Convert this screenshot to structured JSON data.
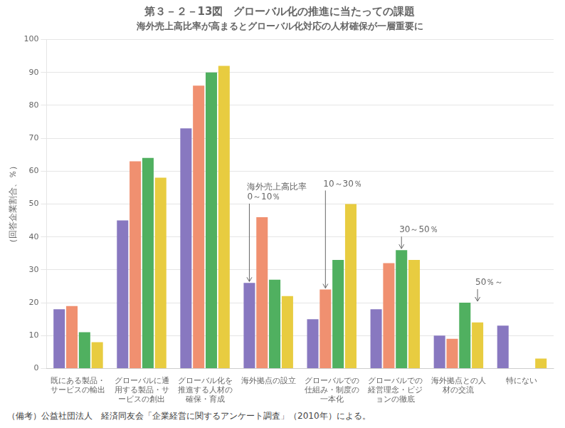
{
  "chart_data": {
    "type": "bar",
    "title": "第３－２－13図　グローバル化の推進に当たっての課題",
    "subtitle": "海外売上高比率が高まるとグローバル化対応の人材確保が一層重要に",
    "ylabel": "（回答企業割合、％）",
    "categories": [
      "既にある製品・サービスの輸出",
      "グローバルに通用する製品・サービスの創出",
      "グローバル化を推進する人材の確保・育成",
      "海外拠点の設立",
      "グローバルでの仕組み・制度の一本化",
      "グローバルでの経営理念・ビジョンの徹底",
      "海外拠点との人材の交流",
      "特にない"
    ],
    "series": [
      {
        "color": "#8878c0",
        "values": [
          18,
          45,
          73,
          26,
          15,
          18,
          10,
          13
        ]
      },
      {
        "color": "#f09070",
        "values": [
          19,
          63,
          86,
          46,
          24,
          32,
          9,
          0
        ]
      },
      {
        "color": "#50b060",
        "values": [
          11,
          64,
          90,
          27,
          33,
          36,
          20,
          0
        ]
      },
      {
        "color": "#e8cc40",
        "values": [
          8,
          58,
          92,
          22,
          50,
          33,
          14,
          3
        ]
      }
    ],
    "ylim": [
      0,
      100
    ],
    "yticks": [
      0,
      10,
      20,
      30,
      40,
      50,
      60,
      70,
      80,
      90,
      100
    ],
    "grid": true,
    "annotations": [
      {
        "text": "海外売上高比率\n0～10％",
        "x": "海外拠点の設立",
        "y": 26
      },
      {
        "text": "10～30％",
        "x": "グローバルでの仕組み・制度の一本化",
        "y": 24
      },
      {
        "text": "30～50％",
        "x": "グローバルでの経営理念・ビジョンの徹底",
        "y": 36
      },
      {
        "text": "50％～",
        "x": "海外拠点との人材の交流",
        "y": 20
      }
    ],
    "footnote": "（備考）公益社団法人　経済同友会「企業経営に関するアンケート調査」（2010年）による。"
  }
}
